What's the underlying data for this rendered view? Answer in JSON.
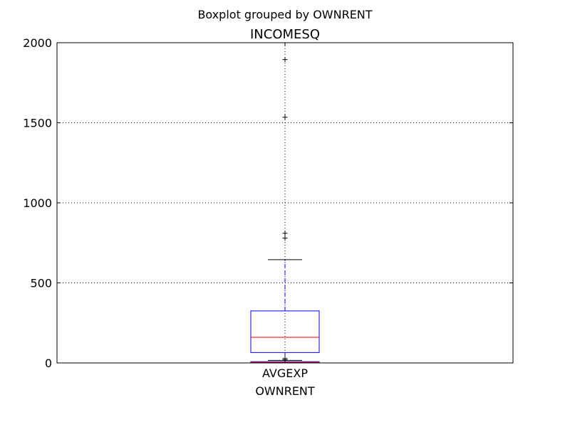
{
  "chart_data": {
    "type": "boxplot",
    "suptitle": "Boxplot grouped by OWNRENT",
    "title": "INCOMESQ",
    "xlabel": "OWNRENT",
    "ylabel": "",
    "ylim": [
      0,
      2000
    ],
    "yticks": [
      0,
      500,
      1000,
      1500,
      2000
    ],
    "ytick_labels": [
      "0",
      "500",
      "1000",
      "1500",
      "2000"
    ],
    "grid": true,
    "categories": [
      "AVGEXP"
    ],
    "boxes": [
      {
        "category": "AVGEXP",
        "q1": 65,
        "median": 160,
        "q3": 325,
        "whisker_low": 0,
        "whisker_high": 645,
        "outliers": [
          780,
          810,
          1535,
          1895
        ]
      },
      {
        "category": "AVGEXP",
        "q1": 1,
        "median": 4,
        "q3": 8,
        "whisker_low": 0,
        "whisker_high": 16,
        "outliers": [
          20,
          28
        ]
      }
    ],
    "colors": {
      "box": "#0000ff",
      "median": "#ff0000",
      "whisker": "#0000ff",
      "cap": "#000000",
      "flier": "#000000",
      "grid": "#000000"
    }
  }
}
